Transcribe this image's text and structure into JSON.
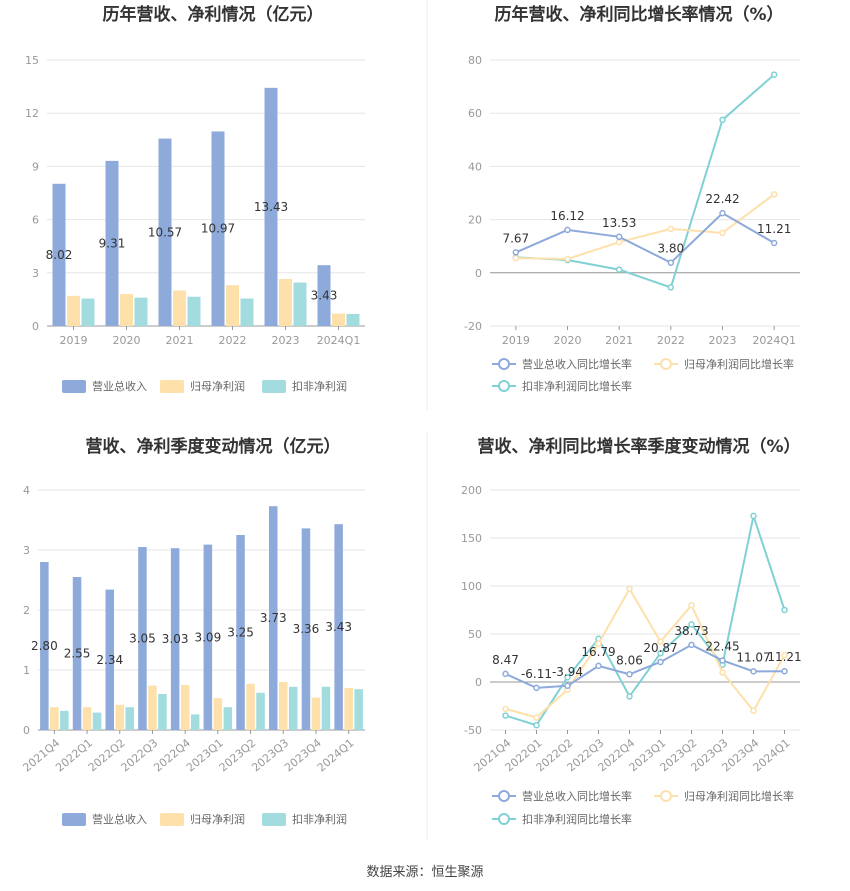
{
  "source": "数据来源：恒生聚源",
  "colors": {
    "revenue": "#8eaadb",
    "net_profit": "#fde0aa",
    "deducted_profit": "#a2dcdf",
    "revenue_line": "#8eaadb",
    "net_profit_line": "#fde0aa",
    "deducted_line": "#80d1d4"
  },
  "chart_data": [
    {
      "id": "annual-bar",
      "type": "bar",
      "title": "历年营收、净利情况（亿元）",
      "categories": [
        "2019",
        "2020",
        "2021",
        "2022",
        "2023",
        "2024Q1"
      ],
      "ylim": [
        0,
        15
      ],
      "yticks": [
        0,
        3,
        6,
        9,
        12,
        15
      ],
      "series": [
        {
          "name": "营业总收入",
          "values": [
            8.02,
            9.31,
            10.57,
            10.97,
            13.43,
            3.43
          ],
          "labels": [
            "8.02",
            "9.31",
            "10.57",
            "10.97",
            "13.43",
            "3.43"
          ]
        },
        {
          "name": "归母净利润",
          "values": [
            1.7,
            1.8,
            2.0,
            2.3,
            2.65,
            0.7
          ]
        },
        {
          "name": "扣非净利润",
          "values": [
            1.55,
            1.6,
            1.65,
            1.55,
            2.45,
            0.68
          ]
        }
      ],
      "legend": "bottom"
    },
    {
      "id": "annual-line",
      "type": "line",
      "title": "历年营收、净利同比增长率情况（%）",
      "categories": [
        "2019",
        "2020",
        "2021",
        "2022",
        "2023",
        "2024Q1"
      ],
      "ylim": [
        -20,
        80
      ],
      "yticks": [
        -20,
        0,
        20,
        40,
        60,
        80
      ],
      "series": [
        {
          "name": "营业总收入同比增长率",
          "values": [
            7.67,
            16.12,
            13.53,
            3.8,
            22.42,
            11.21
          ],
          "labels": [
            "7.67",
            "16.12",
            "13.53",
            "3.80",
            "22.42",
            "11.21"
          ]
        },
        {
          "name": "归母净利润同比增长率",
          "values": [
            5.5,
            5.2,
            11.5,
            16.5,
            15.0,
            29.5
          ]
        },
        {
          "name": "扣非净利润同比增长率",
          "values": [
            5.8,
            4.8,
            1.2,
            -5.5,
            57.5,
            74.5
          ]
        }
      ],
      "legend": "bottom"
    },
    {
      "id": "quarter-bar",
      "type": "bar",
      "title": "营收、净利季度变动情况（亿元）",
      "categories": [
        "2021Q4",
        "2022Q1",
        "2022Q2",
        "2022Q3",
        "2022Q4",
        "2023Q1",
        "2023Q2",
        "2023Q3",
        "2023Q4",
        "2024Q1"
      ],
      "ylim": [
        0,
        4
      ],
      "yticks": [
        0,
        1,
        2,
        3,
        4
      ],
      "series": [
        {
          "name": "营业总收入",
          "values": [
            2.8,
            2.55,
            2.34,
            3.05,
            3.03,
            3.09,
            3.25,
            3.73,
            3.36,
            3.43
          ],
          "labels": [
            "2.80",
            "2.55",
            "2.34",
            "3.05",
            "3.03",
            "3.09",
            "3.25",
            "3.73",
            "3.36",
            "3.43"
          ]
        },
        {
          "name": "归母净利润",
          "values": [
            0.38,
            0.38,
            0.42,
            0.74,
            0.75,
            0.53,
            0.77,
            0.8,
            0.54,
            0.7
          ]
        },
        {
          "name": "扣非净利润",
          "values": [
            0.32,
            0.29,
            0.38,
            0.6,
            0.26,
            0.38,
            0.62,
            0.72,
            0.72,
            0.68
          ]
        }
      ],
      "legend": "bottom"
    },
    {
      "id": "quarter-line",
      "type": "line",
      "title": "营收、净利同比增长率季度变动情况（%）",
      "categories": [
        "2021Q4",
        "2022Q1",
        "2022Q2",
        "2022Q3",
        "2022Q4",
        "2023Q1",
        "2023Q2",
        "2023Q3",
        "2023Q4",
        "2024Q1"
      ],
      "ylim": [
        -50,
        200
      ],
      "yticks": [
        -50,
        0,
        50,
        100,
        150,
        200
      ],
      "series": [
        {
          "name": "营业总收入同比增长率",
          "values": [
            8.47,
            -6.11,
            -3.94,
            16.79,
            8.06,
            20.87,
            38.73,
            22.45,
            11.07,
            11.21
          ],
          "labels": [
            "8.47",
            "-6.11",
            "-3.94",
            "16.79",
            "8.06",
            "20.87",
            "38.73",
            "22.45",
            "11.07",
            "11.21"
          ]
        },
        {
          "name": "归母净利润同比增长率",
          "values": [
            -28,
            -37,
            -8,
            40,
            97,
            42,
            80,
            10,
            -30,
            28
          ]
        },
        {
          "name": "扣非净利润同比增长率",
          "values": [
            -35,
            -45,
            5,
            45,
            -15,
            30,
            60,
            18,
            173,
            75
          ]
        }
      ],
      "legend": "bottom"
    }
  ]
}
